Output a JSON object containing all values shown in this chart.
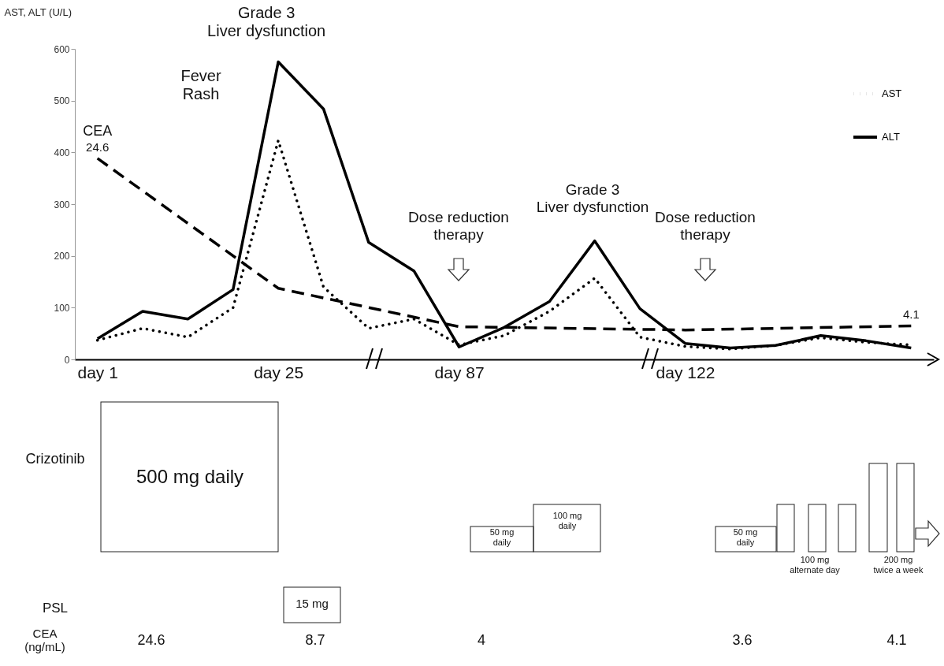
{
  "chart_data": {
    "type": "line",
    "ylabel": "AST, ALT (U/L)",
    "categories": [
      "day 1",
      null,
      null,
      null,
      "day 25",
      null,
      null,
      null,
      "day 87",
      null,
      null,
      null,
      null,
      "day 122",
      null,
      null,
      null,
      null,
      null
    ],
    "ylim": [
      0,
      600
    ],
    "yticks": [
      0,
      100,
      200,
      300,
      400,
      500,
      600
    ],
    "y2lim": [
      0,
      38
    ],
    "series": [
      {
        "name": "AST",
        "color": "#000000",
        "line_style": "dotted",
        "values": [
          37,
          60,
          43,
          100,
          423,
          140,
          60,
          78,
          28,
          46,
          93,
          157,
          43,
          25,
          20,
          27,
          42,
          33,
          28
        ]
      },
      {
        "name": "ALT",
        "color": "#000000",
        "line_style": "solid",
        "values": [
          40,
          93,
          78,
          135,
          575,
          484,
          226,
          171,
          24,
          62,
          112,
          229,
          98,
          31,
          22,
          27,
          46,
          36,
          22
        ]
      },
      {
        "name": "CEA",
        "color": "#000000",
        "line_style": "dashed",
        "axis": "y2",
        "values": [
          24.6,
          null,
          null,
          null,
          8.7,
          null,
          null,
          null,
          4,
          null,
          null,
          null,
          null,
          3.6,
          null,
          null,
          null,
          null,
          4.1
        ],
        "value_labels": [
          "24.6",
          null,
          null,
          null,
          null,
          null,
          null,
          null,
          null,
          null,
          null,
          null,
          null,
          null,
          null,
          null,
          null,
          null,
          "4.1"
        ]
      }
    ],
    "legend": "top right",
    "marker": "none",
    "grid": false,
    "annotations": [
      {
        "text": "Grade 3\nLiver dysfunction",
        "x": "day 25",
        "y": 575
      },
      "Fever\nRash",
      "Dose reduction\ntherapy",
      "Grade 3\nLiver dysfunction",
      "Dose reduction\ntherapy",
      "Crizotinib",
      "500 mg daily",
      "50 mg\ndaily",
      "100 mg\ndaily",
      "50 mg\ndaily",
      "100 mg\nalternate day",
      "200 mg\ntwice a week",
      "PSL",
      "15 mg",
      "CEA\n(ng/mL)",
      "24.6",
      "8.7",
      "4",
      "3.6",
      "4.1"
    ]
  }
}
